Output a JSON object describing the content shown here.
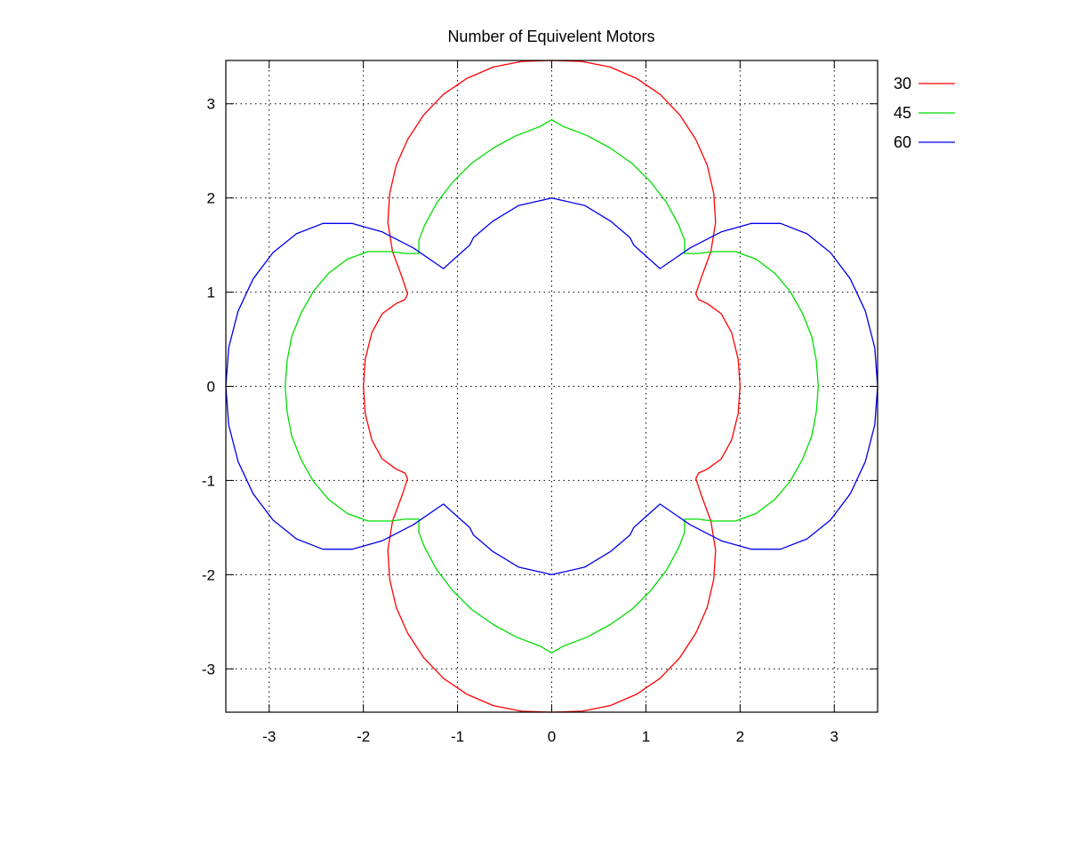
{
  "chart_data": {
    "type": "line",
    "title": "Number of Equivelent Motors",
    "xlabel": "",
    "ylabel": "",
    "xlim": [
      -3.46,
      3.46
    ],
    "ylim": [
      -3.46,
      3.46
    ],
    "xticks": [
      -3,
      -2,
      -1,
      0,
      1,
      2,
      3
    ],
    "yticks": [
      -3,
      -2,
      -1,
      0,
      1,
      2,
      3
    ],
    "grid": true,
    "grid_style": "dotted",
    "legend_position": "outside-top-right",
    "series": [
      {
        "name": "30",
        "color": "#ff0000",
        "x": [
          2.0,
          1.98,
          1.91,
          1.8,
          1.65,
          1.56,
          1.53,
          1.59,
          1.69,
          1.74,
          1.72,
          1.65,
          1.53,
          1.36,
          1.15,
          0.9,
          0.62,
          0.32,
          0.0,
          -0.32,
          -0.62,
          -0.9,
          -1.15,
          -1.36,
          -1.53,
          -1.65,
          -1.72,
          -1.74,
          -1.69,
          -1.59,
          -1.53,
          -1.56,
          -1.65,
          -1.8,
          -1.91,
          -1.98,
          -2.0,
          -1.98,
          -1.91,
          -1.8,
          -1.65,
          -1.56,
          -1.53,
          -1.59,
          -1.69,
          -1.74,
          -1.72,
          -1.65,
          -1.53,
          -1.36,
          -1.15,
          -0.9,
          -0.62,
          -0.32,
          0.0,
          0.32,
          0.62,
          0.9,
          1.15,
          1.36,
          1.53,
          1.65,
          1.72,
          1.74,
          1.69,
          1.59,
          1.53,
          1.56,
          1.65,
          1.8,
          1.91,
          1.98,
          2.0
        ],
        "y": [
          0.0,
          0.29,
          0.57,
          0.77,
          0.88,
          0.92,
          0.98,
          1.16,
          1.43,
          1.74,
          2.05,
          2.35,
          2.62,
          2.88,
          3.1,
          3.27,
          3.39,
          3.45,
          3.46,
          3.45,
          3.39,
          3.27,
          3.1,
          2.88,
          2.62,
          2.35,
          2.05,
          1.74,
          1.43,
          1.16,
          0.98,
          0.92,
          0.88,
          0.77,
          0.57,
          0.29,
          0.0,
          -0.29,
          -0.57,
          -0.77,
          -0.88,
          -0.92,
          -0.98,
          -1.16,
          -1.43,
          -1.74,
          -2.05,
          -2.35,
          -2.62,
          -2.88,
          -3.1,
          -3.27,
          -3.39,
          -3.45,
          -3.46,
          -3.45,
          -3.39,
          -3.27,
          -3.1,
          -2.88,
          -2.62,
          -2.35,
          -2.05,
          -1.74,
          -1.43,
          -1.16,
          -0.98,
          -0.92,
          -0.88,
          -0.77,
          -0.57,
          -0.29,
          0.0
        ]
      },
      {
        "name": "45",
        "color": "#00dd00",
        "x": [
          2.83,
          2.81,
          2.76,
          2.66,
          2.53,
          2.37,
          2.17,
          1.95,
          1.71,
          1.55,
          1.41,
          1.41,
          1.35,
          1.22,
          1.05,
          0.85,
          0.62,
          0.38,
          0.12,
          0.0,
          -0.12,
          -0.38,
          -0.62,
          -0.85,
          -1.05,
          -1.22,
          -1.35,
          -1.41,
          -1.41,
          -1.55,
          -1.71,
          -1.95,
          -2.17,
          -2.37,
          -2.53,
          -2.66,
          -2.76,
          -2.81,
          -2.83,
          -2.81,
          -2.76,
          -2.66,
          -2.53,
          -2.37,
          -2.17,
          -1.95,
          -1.71,
          -1.55,
          -1.41,
          -1.41,
          -1.35,
          -1.22,
          -1.05,
          -0.85,
          -0.62,
          -0.38,
          -0.12,
          0.0,
          0.12,
          0.38,
          0.62,
          0.85,
          1.05,
          1.22,
          1.35,
          1.41,
          1.41,
          1.55,
          1.71,
          1.95,
          2.17,
          2.37,
          2.53,
          2.66,
          2.76,
          2.81,
          2.83
        ],
        "y": [
          0.0,
          0.27,
          0.53,
          0.78,
          1.01,
          1.2,
          1.35,
          1.43,
          1.43,
          1.41,
          1.41,
          1.55,
          1.71,
          1.95,
          2.17,
          2.37,
          2.53,
          2.66,
          2.76,
          2.83,
          2.76,
          2.66,
          2.53,
          2.37,
          2.17,
          1.95,
          1.71,
          1.55,
          1.41,
          1.41,
          1.43,
          1.43,
          1.35,
          1.2,
          1.01,
          0.78,
          0.53,
          0.27,
          0.0,
          -0.27,
          -0.53,
          -0.78,
          -1.01,
          -1.2,
          -1.35,
          -1.43,
          -1.43,
          -1.41,
          -1.41,
          -1.55,
          -1.71,
          -1.95,
          -2.17,
          -2.37,
          -2.53,
          -2.66,
          -2.76,
          -2.83,
          -2.76,
          -2.66,
          -2.53,
          -2.37,
          -2.17,
          -1.95,
          -1.71,
          -1.55,
          -1.41,
          -1.41,
          -1.43,
          -1.43,
          -1.35,
          -1.2,
          -1.01,
          -0.78,
          -0.53,
          -0.27,
          0.0
        ]
      },
      {
        "name": "60",
        "color": "#0000ee",
        "x": [
          3.46,
          3.43,
          3.33,
          3.17,
          2.96,
          2.71,
          2.43,
          2.12,
          1.8,
          1.47,
          1.15,
          0.87,
          0.83,
          0.63,
          0.35,
          0.0,
          -0.35,
          -0.63,
          -0.83,
          -0.87,
          -1.15,
          -1.47,
          -1.8,
          -2.12,
          -2.43,
          -2.71,
          -2.96,
          -3.17,
          -3.33,
          -3.43,
          -3.46,
          -3.43,
          -3.33,
          -3.17,
          -2.96,
          -2.71,
          -2.43,
          -2.12,
          -1.8,
          -1.47,
          -1.15,
          -0.87,
          -0.83,
          -0.63,
          -0.35,
          0.0,
          0.35,
          0.63,
          0.83,
          0.87,
          1.15,
          1.47,
          1.8,
          2.12,
          2.43,
          2.71,
          2.96,
          3.17,
          3.33,
          3.43,
          3.46
        ],
        "y": [
          0.0,
          0.41,
          0.8,
          1.14,
          1.42,
          1.62,
          1.73,
          1.73,
          1.64,
          1.47,
          1.25,
          1.5,
          1.58,
          1.75,
          1.92,
          2.0,
          1.92,
          1.75,
          1.58,
          1.5,
          1.25,
          1.47,
          1.64,
          1.73,
          1.73,
          1.62,
          1.42,
          1.14,
          0.8,
          0.41,
          0.0,
          -0.41,
          -0.8,
          -1.14,
          -1.42,
          -1.62,
          -1.73,
          -1.73,
          -1.64,
          -1.47,
          -1.25,
          -1.5,
          -1.58,
          -1.75,
          -1.92,
          -2.0,
          -1.92,
          -1.75,
          -1.58,
          -1.5,
          -1.25,
          -1.47,
          -1.64,
          -1.73,
          -1.73,
          -1.62,
          -1.42,
          -1.14,
          -0.8,
          -0.41,
          0.0
        ]
      }
    ]
  }
}
